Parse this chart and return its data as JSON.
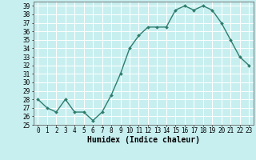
{
  "x": [
    0,
    1,
    2,
    3,
    4,
    5,
    6,
    7,
    8,
    9,
    10,
    11,
    12,
    13,
    14,
    15,
    16,
    17,
    18,
    19,
    20,
    21,
    22,
    23
  ],
  "y": [
    28,
    27,
    26.5,
    28,
    26.5,
    26.5,
    25.5,
    26.5,
    28.5,
    31,
    34,
    35.5,
    36.5,
    36.5,
    36.5,
    38.5,
    39,
    38.5,
    39,
    38.5,
    37,
    35,
    33,
    32
  ],
  "line_color": "#2e7d6e",
  "marker": "D",
  "marker_size": 2.0,
  "bg_color": "#c8eff0",
  "grid_color": "#ffffff",
  "xlabel": "Humidex (Indice chaleur)",
  "ylim": [
    25,
    39.5
  ],
  "xlim": [
    -0.5,
    23.5
  ],
  "yticks": [
    25,
    26,
    27,
    28,
    29,
    30,
    31,
    32,
    33,
    34,
    35,
    36,
    37,
    38,
    39
  ],
  "xticks": [
    0,
    1,
    2,
    3,
    4,
    5,
    6,
    7,
    8,
    9,
    10,
    11,
    12,
    13,
    14,
    15,
    16,
    17,
    18,
    19,
    20,
    21,
    22,
    23
  ],
  "tick_fontsize": 5.5,
  "xlabel_fontsize": 7.0,
  "line_width": 1.0
}
